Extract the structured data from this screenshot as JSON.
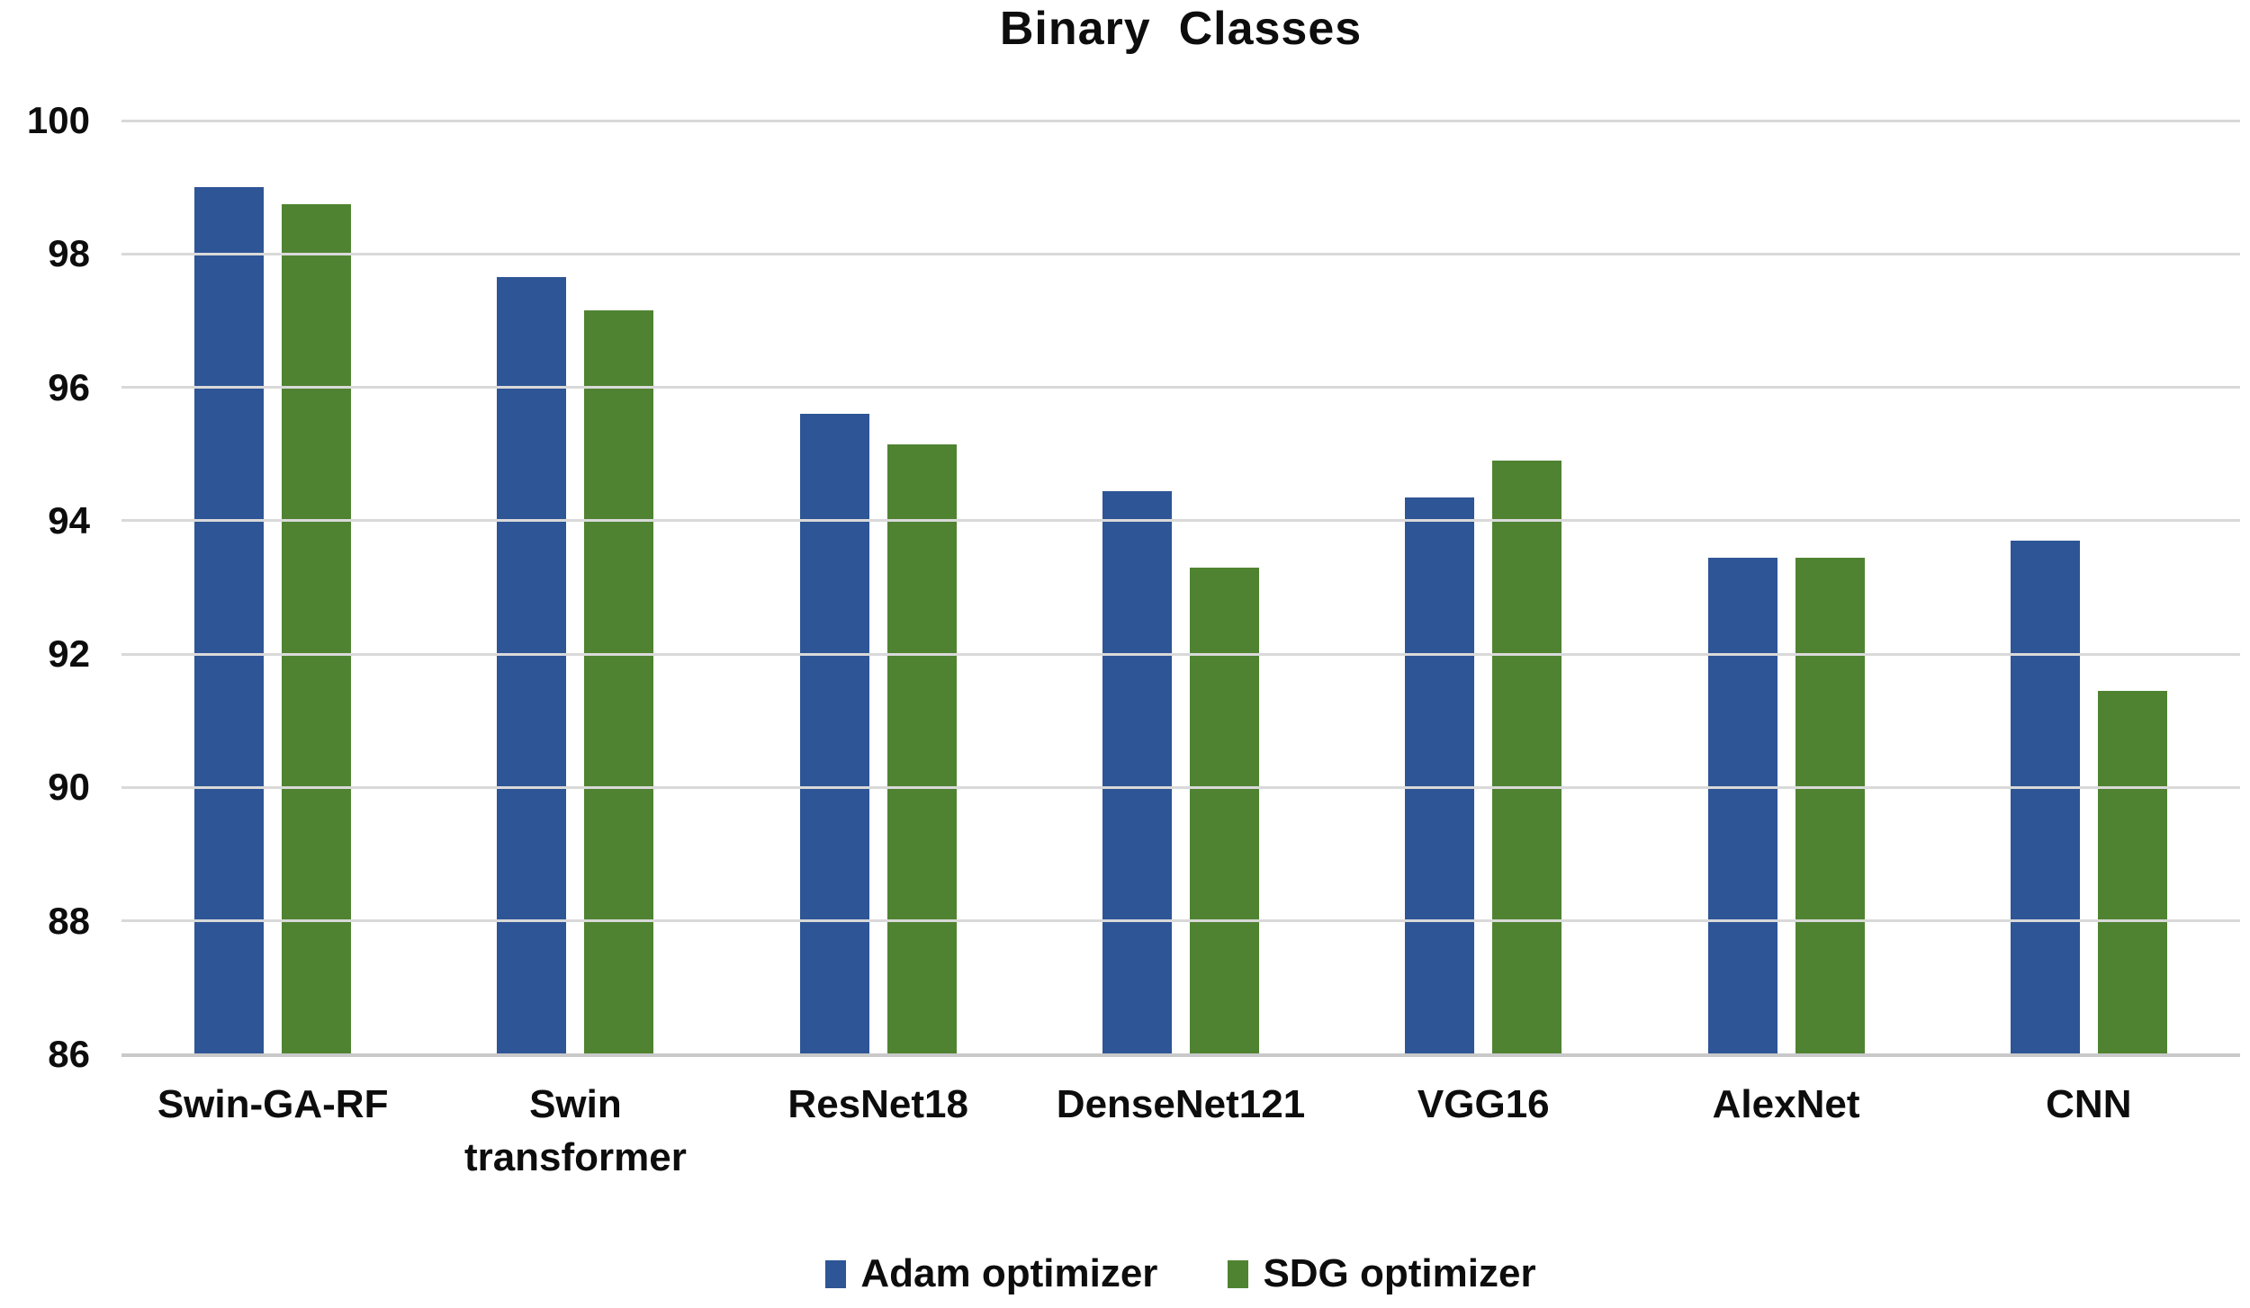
{
  "title": "Binary  Classes",
  "chart_data": {
    "type": "bar",
    "title": "Binary  Classes",
    "categories": [
      "Swin-GA-RF",
      "Swin transformer",
      "ResNet18",
      "DenseNet121",
      "VGG16",
      "AlexNet",
      "CNN"
    ],
    "series": [
      {
        "name": "Adam optimizer",
        "color": "#2E5596",
        "values": [
          99.0,
          97.65,
          95.6,
          94.45,
          94.35,
          93.45,
          93.7
        ]
      },
      {
        "name": "SDG optimizer",
        "color": "#4F8331",
        "values": [
          98.75,
          97.15,
          95.15,
          93.3,
          94.9,
          93.45,
          91.45
        ]
      }
    ],
    "xlabel": "",
    "ylabel": "",
    "ylim": [
      86,
      100
    ],
    "yticks": [
      86,
      88,
      90,
      92,
      94,
      96,
      98,
      100
    ],
    "grid": true,
    "legend_position": "bottom"
  },
  "style": {
    "background": "#FFFFFF",
    "gridline_color": "#D9D9D9",
    "axis_line_color": "#C9C9C9",
    "text_color": "#0D0D0D"
  }
}
